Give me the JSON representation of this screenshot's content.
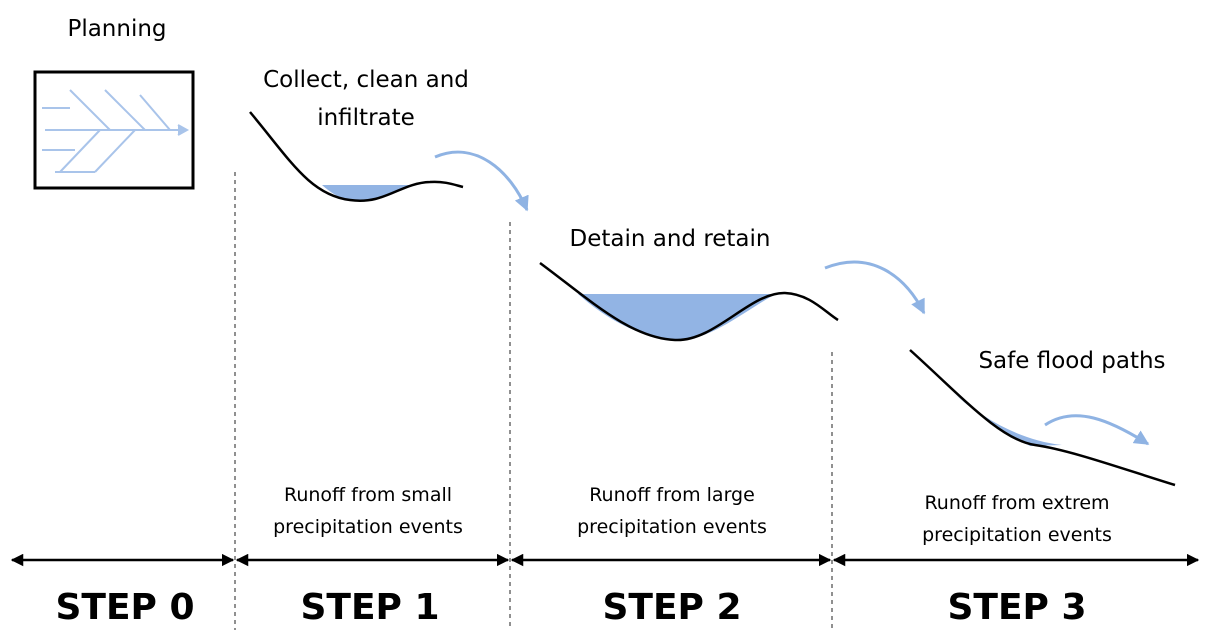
{
  "steps": [
    {
      "label": "STEP 0",
      "title_lines": [
        "Planning"
      ]
    },
    {
      "label": "STEP 1",
      "title_lines": [
        "Collect, clean and",
        "infiltrate"
      ],
      "runoff_lines": [
        "Runoff from small",
        "precipitation events"
      ]
    },
    {
      "label": "STEP 2",
      "title_lines": [
        "Detain and retain"
      ],
      "runoff_lines": [
        "Runoff from large",
        "precipitation events"
      ]
    },
    {
      "label": "STEP 3",
      "title_lines": [
        "Safe flood paths"
      ],
      "runoff_lines": [
        "Runoff from extrem",
        "precipitation events"
      ]
    }
  ]
}
